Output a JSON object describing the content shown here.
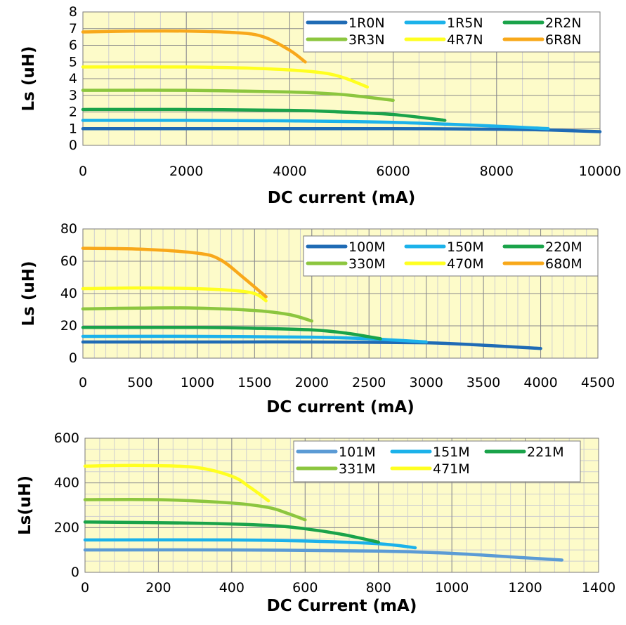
{
  "chart_data": [
    {
      "type": "line",
      "xlabel": "DC current (mA)",
      "ylabel": "Ls (uH)",
      "xlim": [
        0,
        10000
      ],
      "ylim": [
        0,
        8
      ],
      "xticks": [
        0,
        2000,
        4000,
        6000,
        8000,
        10000
      ],
      "yticks": [
        0,
        1,
        2,
        3,
        4,
        5,
        6,
        7,
        8
      ],
      "grid": true,
      "legend_position": "top-right",
      "series": [
        {
          "name": "1R0N",
          "color": "#1f6bb5",
          "x": [
            0,
            2000,
            4000,
            6000,
            8000,
            9000,
            10000
          ],
          "y": [
            1.0,
            1.0,
            1.0,
            1.0,
            0.97,
            0.92,
            0.82
          ]
        },
        {
          "name": "1R5N",
          "color": "#1cb2ea",
          "x": [
            0,
            2000,
            4000,
            6000,
            8000,
            9000
          ],
          "y": [
            1.5,
            1.5,
            1.47,
            1.38,
            1.15,
            1.0
          ]
        },
        {
          "name": "2R2N",
          "color": "#1aa34a",
          "x": [
            0,
            2000,
            4000,
            5000,
            6000,
            7000
          ],
          "y": [
            2.15,
            2.15,
            2.1,
            2.0,
            1.85,
            1.5
          ]
        },
        {
          "name": "3R3N",
          "color": "#8cc63f",
          "x": [
            0,
            2000,
            4000,
            5000,
            6000
          ],
          "y": [
            3.3,
            3.3,
            3.2,
            3.05,
            2.7
          ]
        },
        {
          "name": "4R7N",
          "color": "#ffff20",
          "x": [
            0,
            2000,
            3500,
            4500,
            5000,
            5500
          ],
          "y": [
            4.7,
            4.7,
            4.6,
            4.4,
            4.1,
            3.5
          ]
        },
        {
          "name": "6R8N",
          "color": "#f8a81a",
          "x": [
            0,
            1000,
            2000,
            3000,
            3500,
            4000,
            4300
          ],
          "y": [
            6.8,
            6.85,
            6.85,
            6.75,
            6.5,
            5.7,
            5.0
          ]
        }
      ]
    },
    {
      "type": "line",
      "xlabel": "DC current (mA)",
      "ylabel": "Ls (uH)",
      "xlim": [
        0,
        4500
      ],
      "ylim": [
        0,
        80
      ],
      "xticks": [
        0,
        500,
        1000,
        1500,
        2000,
        2500,
        3000,
        3500,
        4000,
        4500
      ],
      "yticks": [
        0,
        20,
        40,
        60,
        80
      ],
      "grid": true,
      "legend_position": "top-right",
      "series": [
        {
          "name": "100M",
          "color": "#1f6bb5",
          "x": [
            0,
            1000,
            2000,
            3000,
            3500,
            4000
          ],
          "y": [
            10,
            10,
            10,
            9.5,
            8,
            6
          ]
        },
        {
          "name": "150M",
          "color": "#1cb2ea",
          "x": [
            0,
            1000,
            2000,
            2500,
            3000
          ],
          "y": [
            13.5,
            13.5,
            13,
            12,
            10
          ]
        },
        {
          "name": "220M",
          "color": "#1aa34a",
          "x": [
            0,
            1000,
            1500,
            2000,
            2300,
            2600
          ],
          "y": [
            19,
            19,
            18.5,
            17.5,
            15.5,
            12
          ]
        },
        {
          "name": "330M",
          "color": "#8cc63f",
          "x": [
            0,
            500,
            1000,
            1500,
            1800,
            2000
          ],
          "y": [
            30.5,
            31,
            31,
            29.5,
            27,
            23
          ]
        },
        {
          "name": "470M",
          "color": "#ffff20",
          "x": [
            0,
            500,
            1000,
            1300,
            1500,
            1600
          ],
          "y": [
            43,
            43.5,
            43,
            42,
            40,
            35.5
          ]
        },
        {
          "name": "680M",
          "color": "#f8a81a",
          "x": [
            0,
            500,
            1000,
            1200,
            1400,
            1600
          ],
          "y": [
            68,
            67.5,
            65,
            61,
            50,
            38
          ]
        }
      ]
    },
    {
      "type": "line",
      "xlabel": "DC Current (mA)",
      "ylabel": "Ls(uH)",
      "xlim": [
        0,
        1400
      ],
      "ylim": [
        0,
        600
      ],
      "xticks": [
        0,
        200,
        400,
        600,
        800,
        1000,
        1200,
        1400
      ],
      "yticks": [
        0,
        200,
        400,
        600
      ],
      "grid": true,
      "legend_position": "top-right",
      "series": [
        {
          "name": "101M",
          "color": "#5b9bd5",
          "x": [
            0,
            400,
            800,
            1000,
            1200,
            1300
          ],
          "y": [
            100,
            100,
            95,
            85,
            65,
            55
          ]
        },
        {
          "name": "151M",
          "color": "#1cb2ea",
          "x": [
            0,
            400,
            600,
            800,
            900
          ],
          "y": [
            145,
            145,
            140,
            128,
            110
          ]
        },
        {
          "name": "221M",
          "color": "#1aa34a",
          "x": [
            0,
            300,
            500,
            600,
            700,
            800
          ],
          "y": [
            225,
            220,
            210,
            195,
            170,
            135
          ]
        },
        {
          "name": "331M",
          "color": "#8cc63f",
          "x": [
            0,
            200,
            400,
            500,
            550,
            600
          ],
          "y": [
            325,
            325,
            310,
            290,
            265,
            235
          ]
        },
        {
          "name": "471M",
          "color": "#ffff20",
          "x": [
            0,
            150,
            300,
            400,
            450,
            500
          ],
          "y": [
            475,
            478,
            470,
            430,
            380,
            320
          ]
        }
      ]
    }
  ]
}
